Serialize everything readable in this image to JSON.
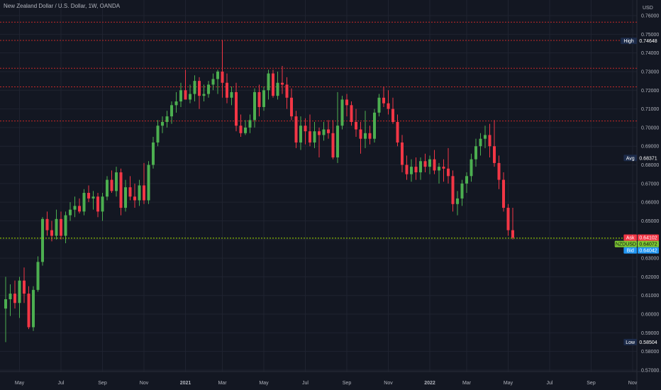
{
  "title": "New Zealand Dollar / U.S. Dollar, 1W, OANDA",
  "currency_label": "USD",
  "colors": {
    "background": "#131722",
    "up": "#4caf50",
    "down": "#f23645",
    "grid": "#1f2330",
    "level_lines": "#c62828",
    "last_price_line": "#a4e000",
    "ask": "#f23645",
    "bid": "#2196f3",
    "symbol": "#7ec832",
    "info_tag": "#1c2b4a"
  },
  "chart_data": {
    "type": "candlestick",
    "timeframe": "1W",
    "symbol": "NZDUSD",
    "y_axis_side": "right",
    "ylim": [
      0.57,
      0.76
    ],
    "grid": true,
    "y_ticks": [
      "0.76000",
      "0.75000",
      "0.74000",
      "0.73000",
      "0.72000",
      "0.71000",
      "0.70000",
      "0.69000",
      "0.68000",
      "0.67000",
      "0.66000",
      "0.65000",
      "0.64000",
      "0.63000",
      "0.62000",
      "0.61000",
      "0.60000",
      "0.59000",
      "0.58000",
      "0.57000"
    ],
    "x_ticks": [
      {
        "label": "May",
        "index": 3,
        "bold": false
      },
      {
        "label": "Jul",
        "index": 12,
        "bold": false
      },
      {
        "label": "Sep",
        "index": 21,
        "bold": false
      },
      {
        "label": "Nov",
        "index": 30,
        "bold": false
      },
      {
        "label": "2021",
        "index": 39,
        "bold": true
      },
      {
        "label": "Mar",
        "index": 47,
        "bold": false
      },
      {
        "label": "May",
        "index": 56,
        "bold": false
      },
      {
        "label": "Jul",
        "index": 65,
        "bold": false
      },
      {
        "label": "Sep",
        "index": 74,
        "bold": false
      },
      {
        "label": "Nov",
        "index": 83,
        "bold": false
      },
      {
        "label": "2022",
        "index": 92,
        "bold": true
      },
      {
        "label": "Mar",
        "index": 100,
        "bold": false
      },
      {
        "label": "May",
        "index": 109,
        "bold": false
      },
      {
        "label": "Jul",
        "index": 118,
        "bold": false
      },
      {
        "label": "Sep",
        "index": 127,
        "bold": false
      },
      {
        "label": "Nov",
        "index": 136,
        "bold": false
      }
    ],
    "horizontal_levels": [
      0.7565,
      0.7467,
      0.7318,
      0.7218,
      0.7035
    ],
    "markers": [
      {
        "label": "High",
        "value_text": "0.74648",
        "value": 0.74648,
        "color_key": "info_tag"
      },
      {
        "label": "Avg",
        "value_text": "0.68371",
        "value": 0.68371,
        "color_key": "info_tag"
      },
      {
        "label": "Ask",
        "value_text": "0.64102",
        "value": 0.64102,
        "color_key": "ask"
      },
      {
        "label": "NZDUSD",
        "value_text": "0.64072",
        "value": 0.64072,
        "color_key": "symbol"
      },
      {
        "label": "Bid",
        "value_text": "0.64042",
        "value": 0.64042,
        "color_key": "bid"
      },
      {
        "label": "Low",
        "value_text": "0.58504",
        "value": 0.58504,
        "color_key": "info_tag"
      }
    ],
    "last_price": 0.64072,
    "candles": [
      {
        "o": 0.603,
        "h": 0.62,
        "l": 0.585,
        "c": 0.608
      },
      {
        "o": 0.608,
        "h": 0.616,
        "l": 0.599,
        "c": 0.611
      },
      {
        "o": 0.611,
        "h": 0.618,
        "l": 0.603,
        "c": 0.606
      },
      {
        "o": 0.606,
        "h": 0.62,
        "l": 0.598,
        "c": 0.618
      },
      {
        "o": 0.618,
        "h": 0.625,
        "l": 0.606,
        "c": 0.611
      },
      {
        "o": 0.611,
        "h": 0.615,
        "l": 0.592,
        "c": 0.593
      },
      {
        "o": 0.593,
        "h": 0.615,
        "l": 0.591,
        "c": 0.613
      },
      {
        "o": 0.613,
        "h": 0.631,
        "l": 0.612,
        "c": 0.628
      },
      {
        "o": 0.628,
        "h": 0.652,
        "l": 0.626,
        "c": 0.651
      },
      {
        "o": 0.651,
        "h": 0.655,
        "l": 0.642,
        "c": 0.645
      },
      {
        "o": 0.645,
        "h": 0.65,
        "l": 0.639,
        "c": 0.642
      },
      {
        "o": 0.642,
        "h": 0.656,
        "l": 0.64,
        "c": 0.651
      },
      {
        "o": 0.651,
        "h": 0.655,
        "l": 0.64,
        "c": 0.642
      },
      {
        "o": 0.642,
        "h": 0.655,
        "l": 0.638,
        "c": 0.653
      },
      {
        "o": 0.653,
        "h": 0.66,
        "l": 0.65,
        "c": 0.656
      },
      {
        "o": 0.656,
        "h": 0.663,
        "l": 0.652,
        "c": 0.658
      },
      {
        "o": 0.658,
        "h": 0.662,
        "l": 0.654,
        "c": 0.655
      },
      {
        "o": 0.655,
        "h": 0.667,
        "l": 0.653,
        "c": 0.665
      },
      {
        "o": 0.665,
        "h": 0.669,
        "l": 0.66,
        "c": 0.662
      },
      {
        "o": 0.662,
        "h": 0.666,
        "l": 0.656,
        "c": 0.663
      },
      {
        "o": 0.663,
        "h": 0.665,
        "l": 0.652,
        "c": 0.655
      },
      {
        "o": 0.655,
        "h": 0.665,
        "l": 0.65,
        "c": 0.663
      },
      {
        "o": 0.663,
        "h": 0.674,
        "l": 0.661,
        "c": 0.672
      },
      {
        "o": 0.672,
        "h": 0.677,
        "l": 0.665,
        "c": 0.666
      },
      {
        "o": 0.666,
        "h": 0.679,
        "l": 0.663,
        "c": 0.676
      },
      {
        "o": 0.676,
        "h": 0.678,
        "l": 0.653,
        "c": 0.657
      },
      {
        "o": 0.657,
        "h": 0.672,
        "l": 0.655,
        "c": 0.668
      },
      {
        "o": 0.668,
        "h": 0.674,
        "l": 0.661,
        "c": 0.663
      },
      {
        "o": 0.663,
        "h": 0.67,
        "l": 0.657,
        "c": 0.661
      },
      {
        "o": 0.661,
        "h": 0.672,
        "l": 0.658,
        "c": 0.669
      },
      {
        "o": 0.669,
        "h": 0.681,
        "l": 0.659,
        "c": 0.661
      },
      {
        "o": 0.661,
        "h": 0.682,
        "l": 0.659,
        "c": 0.68
      },
      {
        "o": 0.68,
        "h": 0.695,
        "l": 0.678,
        "c": 0.692
      },
      {
        "o": 0.692,
        "h": 0.704,
        "l": 0.69,
        "c": 0.701
      },
      {
        "o": 0.701,
        "h": 0.706,
        "l": 0.697,
        "c": 0.703
      },
      {
        "o": 0.703,
        "h": 0.709,
        "l": 0.7,
        "c": 0.706
      },
      {
        "o": 0.706,
        "h": 0.714,
        "l": 0.702,
        "c": 0.712
      },
      {
        "o": 0.712,
        "h": 0.719,
        "l": 0.708,
        "c": 0.714
      },
      {
        "o": 0.714,
        "h": 0.724,
        "l": 0.711,
        "c": 0.72
      },
      {
        "o": 0.72,
        "h": 0.731,
        "l": 0.715,
        "c": 0.715
      },
      {
        "o": 0.715,
        "h": 0.723,
        "l": 0.713,
        "c": 0.718
      },
      {
        "o": 0.718,
        "h": 0.728,
        "l": 0.714,
        "c": 0.725
      },
      {
        "o": 0.725,
        "h": 0.727,
        "l": 0.71,
        "c": 0.717
      },
      {
        "o": 0.717,
        "h": 0.723,
        "l": 0.714,
        "c": 0.718
      },
      {
        "o": 0.718,
        "h": 0.725,
        "l": 0.716,
        "c": 0.723
      },
      {
        "o": 0.723,
        "h": 0.729,
        "l": 0.72,
        "c": 0.726
      },
      {
        "o": 0.726,
        "h": 0.731,
        "l": 0.718,
        "c": 0.73
      },
      {
        "o": 0.73,
        "h": 0.747,
        "l": 0.716,
        "c": 0.724
      },
      {
        "o": 0.724,
        "h": 0.729,
        "l": 0.713,
        "c": 0.716
      },
      {
        "o": 0.716,
        "h": 0.722,
        "l": 0.712,
        "c": 0.719
      },
      {
        "o": 0.719,
        "h": 0.724,
        "l": 0.698,
        "c": 0.701
      },
      {
        "o": 0.701,
        "h": 0.707,
        "l": 0.695,
        "c": 0.697
      },
      {
        "o": 0.697,
        "h": 0.704,
        "l": 0.696,
        "c": 0.7
      },
      {
        "o": 0.7,
        "h": 0.707,
        "l": 0.697,
        "c": 0.704
      },
      {
        "o": 0.704,
        "h": 0.721,
        "l": 0.7,
        "c": 0.719
      },
      {
        "o": 0.719,
        "h": 0.723,
        "l": 0.706,
        "c": 0.711
      },
      {
        "o": 0.711,
        "h": 0.722,
        "l": 0.709,
        "c": 0.72
      },
      {
        "o": 0.72,
        "h": 0.731,
        "l": 0.715,
        "c": 0.729
      },
      {
        "o": 0.729,
        "h": 0.731,
        "l": 0.716,
        "c": 0.717
      },
      {
        "o": 0.717,
        "h": 0.73,
        "l": 0.715,
        "c": 0.724
      },
      {
        "o": 0.724,
        "h": 0.733,
        "l": 0.718,
        "c": 0.723
      },
      {
        "o": 0.723,
        "h": 0.727,
        "l": 0.71,
        "c": 0.716
      },
      {
        "o": 0.716,
        "h": 0.721,
        "l": 0.704,
        "c": 0.706
      },
      {
        "o": 0.706,
        "h": 0.709,
        "l": 0.689,
        "c": 0.692
      },
      {
        "o": 0.692,
        "h": 0.706,
        "l": 0.688,
        "c": 0.701
      },
      {
        "o": 0.701,
        "h": 0.705,
        "l": 0.691,
        "c": 0.698
      },
      {
        "o": 0.698,
        "h": 0.707,
        "l": 0.69,
        "c": 0.692
      },
      {
        "o": 0.692,
        "h": 0.703,
        "l": 0.689,
        "c": 0.698
      },
      {
        "o": 0.698,
        "h": 0.7,
        "l": 0.684,
        "c": 0.696
      },
      {
        "o": 0.696,
        "h": 0.703,
        "l": 0.693,
        "c": 0.699
      },
      {
        "o": 0.699,
        "h": 0.704,
        "l": 0.694,
        "c": 0.697
      },
      {
        "o": 0.697,
        "h": 0.704,
        "l": 0.683,
        "c": 0.684
      },
      {
        "o": 0.684,
        "h": 0.719,
        "l": 0.681,
        "c": 0.701
      },
      {
        "o": 0.701,
        "h": 0.717,
        "l": 0.699,
        "c": 0.715
      },
      {
        "o": 0.715,
        "h": 0.718,
        "l": 0.706,
        "c": 0.712
      },
      {
        "o": 0.712,
        "h": 0.714,
        "l": 0.701,
        "c": 0.703
      },
      {
        "o": 0.703,
        "h": 0.71,
        "l": 0.695,
        "c": 0.699
      },
      {
        "o": 0.699,
        "h": 0.703,
        "l": 0.686,
        "c": 0.694
      },
      {
        "o": 0.694,
        "h": 0.709,
        "l": 0.689,
        "c": 0.697
      },
      {
        "o": 0.697,
        "h": 0.701,
        "l": 0.691,
        "c": 0.694
      },
      {
        "o": 0.694,
        "h": 0.71,
        "l": 0.692,
        "c": 0.708
      },
      {
        "o": 0.708,
        "h": 0.718,
        "l": 0.706,
        "c": 0.716
      },
      {
        "o": 0.716,
        "h": 0.722,
        "l": 0.711,
        "c": 0.713
      },
      {
        "o": 0.713,
        "h": 0.72,
        "l": 0.707,
        "c": 0.71
      },
      {
        "o": 0.71,
        "h": 0.716,
        "l": 0.702,
        "c": 0.703
      },
      {
        "o": 0.703,
        "h": 0.707,
        "l": 0.69,
        "c": 0.692
      },
      {
        "o": 0.692,
        "h": 0.696,
        "l": 0.676,
        "c": 0.68
      },
      {
        "o": 0.68,
        "h": 0.685,
        "l": 0.672,
        "c": 0.675
      },
      {
        "o": 0.675,
        "h": 0.683,
        "l": 0.671,
        "c": 0.679
      },
      {
        "o": 0.679,
        "h": 0.684,
        "l": 0.672,
        "c": 0.676
      },
      {
        "o": 0.676,
        "h": 0.684,
        "l": 0.672,
        "c": 0.682
      },
      {
        "o": 0.682,
        "h": 0.686,
        "l": 0.676,
        "c": 0.679
      },
      {
        "o": 0.679,
        "h": 0.685,
        "l": 0.675,
        "c": 0.683
      },
      {
        "o": 0.683,
        "h": 0.688,
        "l": 0.675,
        "c": 0.677
      },
      {
        "o": 0.677,
        "h": 0.681,
        "l": 0.67,
        "c": 0.679
      },
      {
        "o": 0.679,
        "h": 0.683,
        "l": 0.671,
        "c": 0.678
      },
      {
        "o": 0.678,
        "h": 0.689,
        "l": 0.67,
        "c": 0.674
      },
      {
        "o": 0.674,
        "h": 0.677,
        "l": 0.655,
        "c": 0.659
      },
      {
        "o": 0.659,
        "h": 0.666,
        "l": 0.653,
        "c": 0.662
      },
      {
        "o": 0.662,
        "h": 0.672,
        "l": 0.658,
        "c": 0.67
      },
      {
        "o": 0.67,
        "h": 0.676,
        "l": 0.665,
        "c": 0.674
      },
      {
        "o": 0.674,
        "h": 0.686,
        "l": 0.671,
        "c": 0.683
      },
      {
        "o": 0.683,
        "h": 0.694,
        "l": 0.679,
        "c": 0.69
      },
      {
        "o": 0.69,
        "h": 0.697,
        "l": 0.685,
        "c": 0.694
      },
      {
        "o": 0.694,
        "h": 0.701,
        "l": 0.689,
        "c": 0.696
      },
      {
        "o": 0.696,
        "h": 0.702,
        "l": 0.684,
        "c": 0.69
      },
      {
        "o": 0.69,
        "h": 0.704,
        "l": 0.679,
        "c": 0.681
      },
      {
        "o": 0.681,
        "h": 0.685,
        "l": 0.667,
        "c": 0.672
      },
      {
        "o": 0.672,
        "h": 0.676,
        "l": 0.655,
        "c": 0.657
      },
      {
        "o": 0.657,
        "h": 0.659,
        "l": 0.642,
        "c": 0.645
      },
      {
        "o": 0.645,
        "h": 0.657,
        "l": 0.64,
        "c": 0.641
      }
    ]
  }
}
